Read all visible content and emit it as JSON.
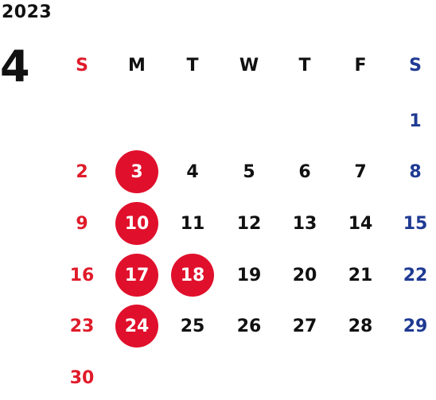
{
  "calendar": {
    "year": "2023",
    "month": "4",
    "weekdays": [
      "S",
      "M",
      "T",
      "W",
      "T",
      "F",
      "S"
    ],
    "weeks": [
      [
        "",
        "",
        "",
        "",
        "",
        "",
        "1"
      ],
      [
        "2",
        "3",
        "4",
        "5",
        "6",
        "7",
        "8"
      ],
      [
        "9",
        "10",
        "11",
        "12",
        "13",
        "14",
        "15"
      ],
      [
        "16",
        "17",
        "18",
        "19",
        "20",
        "21",
        "22"
      ],
      [
        "23",
        "24",
        "25",
        "26",
        "27",
        "28",
        "29"
      ],
      [
        "30",
        "",
        "",
        "",
        "",
        "",
        ""
      ]
    ],
    "holidays": [
      "3",
      "10",
      "17",
      "18",
      "24"
    ]
  },
  "colors": {
    "sunday": "#e01b2a",
    "saturday": "#1f3a93",
    "holiday_circle": "#e0102c",
    "text": "#111111"
  }
}
